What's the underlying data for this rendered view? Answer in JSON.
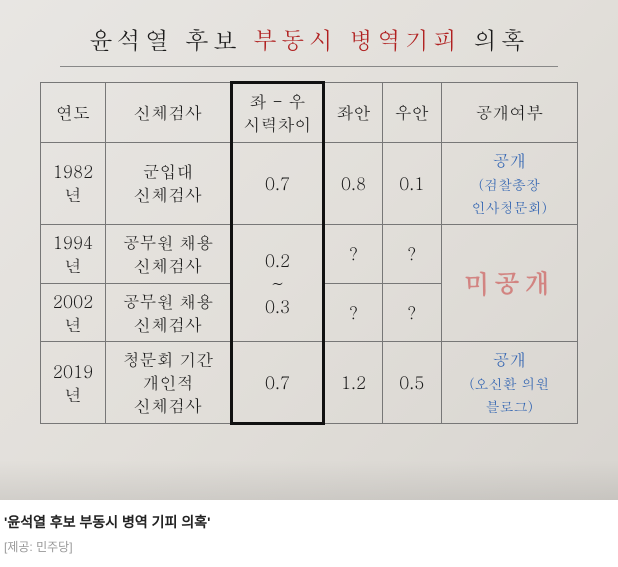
{
  "title": {
    "part1": "윤석열 후보",
    "part2_red": "부동시 병역기피",
    "part3": "의혹"
  },
  "table": {
    "headers": {
      "year": "연도",
      "exam": "신체검사",
      "diff": "좌 - 우\n시력차이",
      "left": "좌안",
      "right": "우안",
      "open": "공개여부"
    },
    "rows": [
      {
        "year": "1982년",
        "exam": "군입대\n신체검사",
        "diff": "0.7",
        "left": "0.8",
        "right": "0.1",
        "open_title": "공개",
        "open_sub": "(검찰총장\n인사청문회)"
      },
      {
        "year": "1994년",
        "exam": "공무원 채용\n신체검사",
        "diff_merged_top": "0.2",
        "diff_merged_sep": "~",
        "diff_merged_bot": "0.3",
        "left": "?",
        "right": "?",
        "open_merged": "미공개"
      },
      {
        "year": "2002년",
        "exam": "공무원 채용\n신체검사",
        "left": "?",
        "right": "?"
      },
      {
        "year": "2019년",
        "exam": "청문회 기간\n개인적\n신체검사",
        "diff": "0.7",
        "left": "1.2",
        "right": "0.5",
        "open_title": "공개",
        "open_sub": "(오신환 의원\n블로그)"
      }
    ]
  },
  "styling": {
    "title_fontsize": 24,
    "cell_fontsize": 17,
    "diff_fontsize": 26,
    "red_color": "#b02020",
    "blue_color": "#2a5fb0",
    "stamp_color": "rgba(200,60,60,0.55)",
    "paper_bg_from": "#e8e6e3",
    "paper_bg_to": "#d8d5d0",
    "border_color": "#777",
    "border_thick_color": "#111"
  },
  "caption": {
    "bold": "'윤석열 후보 부동시 병역 기피 의혹'",
    "source": "[제공: 민주당]"
  }
}
